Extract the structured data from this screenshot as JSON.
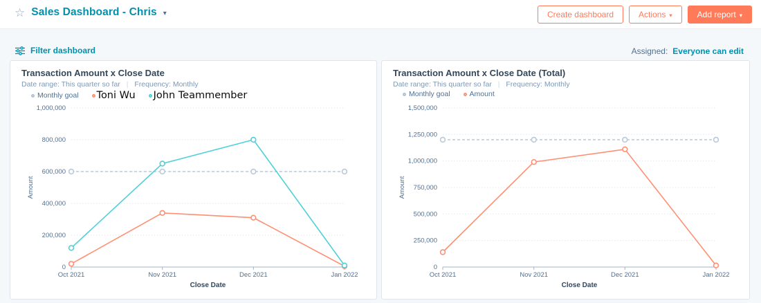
{
  "header": {
    "star_icon": "☆",
    "title": "Sales Dashboard - Chris",
    "caret_icon": "▾",
    "buttons": [
      {
        "label": "Create dashboard",
        "style": "outline",
        "has_caret": false
      },
      {
        "label": "Actions",
        "style": "outline",
        "has_caret": true
      },
      {
        "label": "Add report",
        "style": "solid",
        "has_caret": true
      }
    ]
  },
  "filter_bar": {
    "filter_label": "Filter dashboard",
    "assigned_label": "Assigned:",
    "assigned_value": "Everyone can edit"
  },
  "colors": {
    "teal_text": "#0091ae",
    "navy": "#33475b",
    "slate": "#516f90",
    "muted_blue": "#7c98b6",
    "coral_button": "#ff7a59",
    "chart_orange": "#ff8f73",
    "chart_teal": "#4ed0d8",
    "goal_line": "#bac9da",
    "axis_line": "#9fb5ca",
    "gridline": "#dfe6ee",
    "card_border": "#dfe3eb",
    "band_bg": "#f5f8fa"
  },
  "chart_data": [
    {
      "type": "line",
      "title": "Transaction Amount x Close Date",
      "date_range_label": "Date range:",
      "date_range_value": "This quarter so far",
      "frequency_label": "Frequency:",
      "frequency_value": "Monthly",
      "xlabel": "Close Date",
      "ylabel": "Amount",
      "categories": [
        "Oct 2021",
        "Nov 2021",
        "Dec 2021",
        "Jan 2022"
      ],
      "ylim": [
        0,
        1000000
      ],
      "ytick_step": 200000,
      "grid": "horizontal-dotted",
      "legend_position": "top-left",
      "legend": [
        {
          "label": "Monthly goal",
          "color": "#b0c1d4",
          "anonymized": false
        },
        {
          "label": "Toni Wu",
          "color": "#ff8f73",
          "anonymized": true
        },
        {
          "label": "John Teammember",
          "color": "#4ed0d8",
          "anonymized": true
        }
      ],
      "series": [
        {
          "name": "Monthly goal",
          "values": [
            600000,
            600000,
            600000,
            600000
          ],
          "color": "#bac9da",
          "dashed": true
        },
        {
          "name": "Toni Wu",
          "values": [
            20000,
            340000,
            310000,
            5000
          ],
          "color": "#ff8f73",
          "dashed": false
        },
        {
          "name": "John Teammember",
          "values": [
            120000,
            650000,
            800000,
            10000
          ],
          "color": "#4ed0d8",
          "dashed": false
        }
      ]
    },
    {
      "type": "line",
      "title": "Transaction Amount x Close Date (Total)",
      "date_range_label": "Date range:",
      "date_range_value": "This quarter so far",
      "frequency_label": "Frequency:",
      "frequency_value": "Monthly",
      "xlabel": "Close Date",
      "ylabel": "Amount",
      "categories": [
        "Oct 2021",
        "Nov 2021",
        "Dec 2021",
        "Jan 2022"
      ],
      "ylim": [
        0,
        1500000
      ],
      "ytick_step": 250000,
      "grid": "horizontal-dotted",
      "legend_position": "top-left",
      "legend": [
        {
          "label": "Monthly goal",
          "color": "#b0c1d4",
          "anonymized": false
        },
        {
          "label": "Amount",
          "color": "#ff8f73",
          "anonymized": false
        }
      ],
      "series": [
        {
          "name": "Monthly goal",
          "values": [
            1200000,
            1200000,
            1200000,
            1200000
          ],
          "color": "#bac9da",
          "dashed": true
        },
        {
          "name": "Amount",
          "values": [
            140000,
            990000,
            1110000,
            15000
          ],
          "color": "#ff8f73",
          "dashed": false
        }
      ]
    }
  ]
}
